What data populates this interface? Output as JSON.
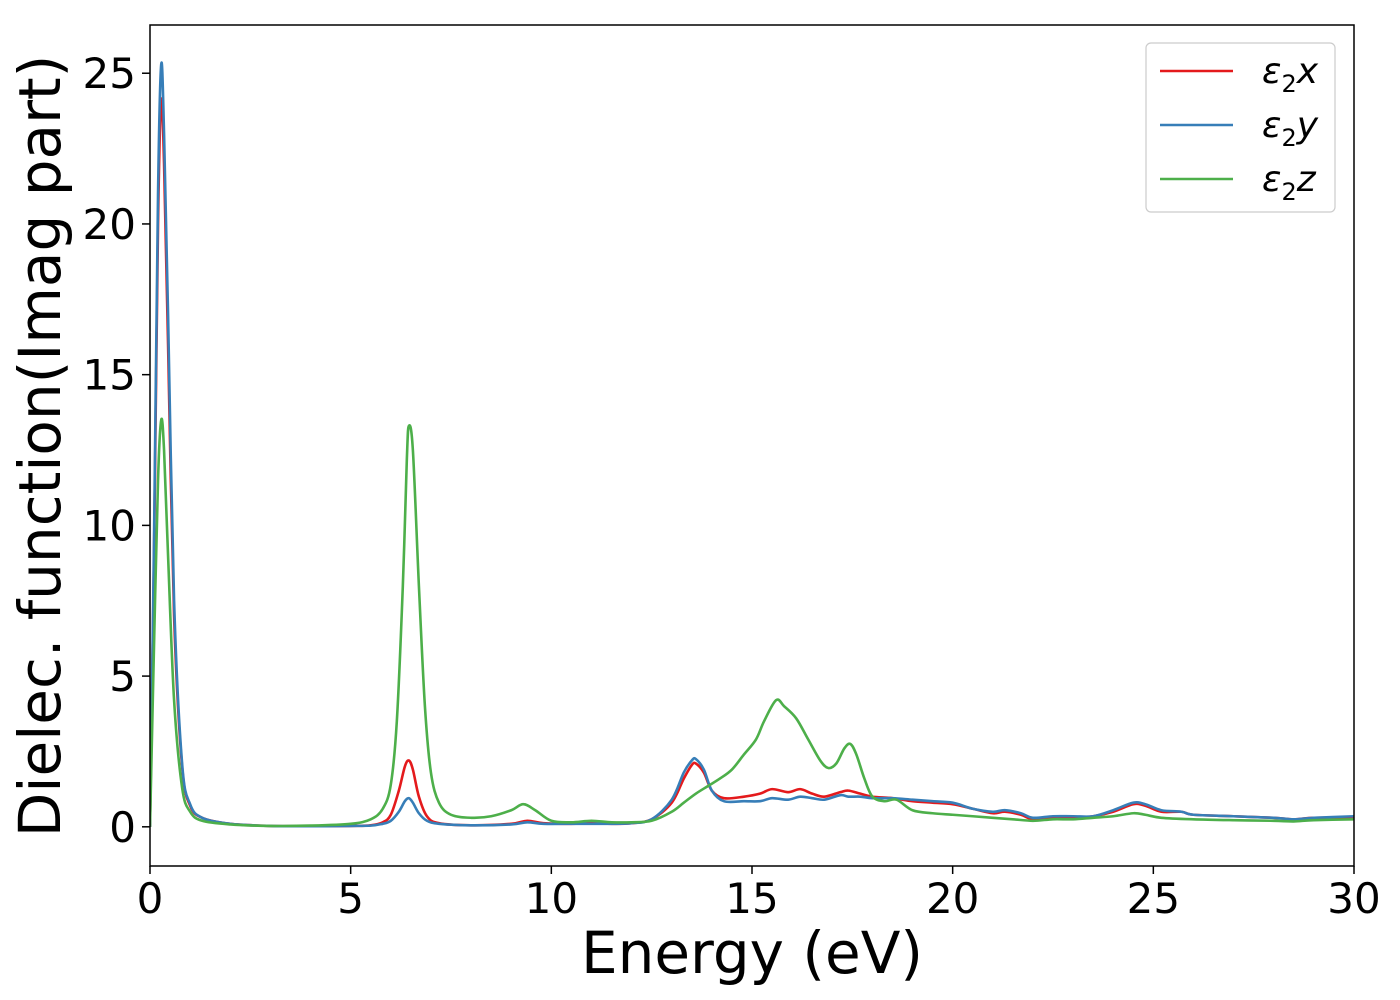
{
  "chart_data": {
    "type": "line",
    "title": "",
    "xlabel": "Energy (eV)",
    "ylabel": "Dielec. function(Imag part)",
    "xlim": [
      0,
      30
    ],
    "ylim": [
      -1.3,
      26.6
    ],
    "xticks": [
      0,
      5,
      10,
      15,
      20,
      25,
      30
    ],
    "yticks": [
      0,
      5,
      10,
      15,
      20,
      25
    ],
    "grid": false,
    "legend_position": "upper right",
    "series": [
      {
        "name": "ε₂x",
        "legend_base": "ε",
        "legend_sub": "2",
        "legend_tail": "x",
        "color": "#e41a1c",
        "points": [
          [
            0,
            0
          ],
          [
            0.1,
            9
          ],
          [
            0.2,
            20
          ],
          [
            0.28,
            24.1
          ],
          [
            0.35,
            22
          ],
          [
            0.45,
            16
          ],
          [
            0.6,
            7
          ],
          [
            0.8,
            2
          ],
          [
            1.0,
            0.7
          ],
          [
            1.3,
            0.3
          ],
          [
            2,
            0.1
          ],
          [
            3,
            0.03
          ],
          [
            4,
            0.02
          ],
          [
            5,
            0.03
          ],
          [
            5.5,
            0.05
          ],
          [
            5.8,
            0.15
          ],
          [
            6.0,
            0.4
          ],
          [
            6.2,
            1.2
          ],
          [
            6.35,
            2.0
          ],
          [
            6.45,
            2.2
          ],
          [
            6.55,
            1.9
          ],
          [
            6.7,
            1.0
          ],
          [
            6.9,
            0.35
          ],
          [
            7.2,
            0.12
          ],
          [
            8,
            0.05
          ],
          [
            9,
            0.1
          ],
          [
            9.4,
            0.2
          ],
          [
            9.8,
            0.12
          ],
          [
            10.5,
            0.1
          ],
          [
            11,
            0.12
          ],
          [
            11.5,
            0.1
          ],
          [
            12,
            0.12
          ],
          [
            12.5,
            0.25
          ],
          [
            13,
            0.8
          ],
          [
            13.3,
            1.6
          ],
          [
            13.5,
            2.05
          ],
          [
            13.6,
            2.1
          ],
          [
            13.8,
            1.8
          ],
          [
            14.0,
            1.2
          ],
          [
            14.3,
            0.95
          ],
          [
            14.8,
            1.0
          ],
          [
            15.2,
            1.1
          ],
          [
            15.5,
            1.25
          ],
          [
            15.9,
            1.15
          ],
          [
            16.2,
            1.25
          ],
          [
            16.5,
            1.1
          ],
          [
            16.8,
            1.0
          ],
          [
            17.2,
            1.15
          ],
          [
            17.4,
            1.2
          ],
          [
            17.7,
            1.1
          ],
          [
            18.0,
            1.0
          ],
          [
            18.5,
            0.95
          ],
          [
            19,
            0.85
          ],
          [
            19.5,
            0.8
          ],
          [
            20,
            0.75
          ],
          [
            20.5,
            0.6
          ],
          [
            21,
            0.45
          ],
          [
            21.3,
            0.5
          ],
          [
            21.7,
            0.4
          ],
          [
            22,
            0.25
          ],
          [
            22.5,
            0.3
          ],
          [
            23,
            0.3
          ],
          [
            23.5,
            0.35
          ],
          [
            24,
            0.5
          ],
          [
            24.5,
            0.75
          ],
          [
            24.8,
            0.7
          ],
          [
            25.2,
            0.5
          ],
          [
            25.7,
            0.5
          ],
          [
            26,
            0.4
          ],
          [
            27,
            0.35
          ],
          [
            28,
            0.3
          ],
          [
            28.5,
            0.25
          ],
          [
            29,
            0.3
          ],
          [
            30,
            0.3
          ]
        ]
      },
      {
        "name": "ε₂y",
        "legend_base": "ε",
        "legend_sub": "2",
        "legend_tail": "y",
        "color": "#377eb8",
        "points": [
          [
            0,
            0
          ],
          [
            0.1,
            9.5
          ],
          [
            0.2,
            21
          ],
          [
            0.28,
            25.3
          ],
          [
            0.35,
            23
          ],
          [
            0.45,
            17
          ],
          [
            0.6,
            7.5
          ],
          [
            0.8,
            2.1
          ],
          [
            1.0,
            0.75
          ],
          [
            1.3,
            0.3
          ],
          [
            2,
            0.1
          ],
          [
            3,
            0.03
          ],
          [
            4,
            0.02
          ],
          [
            5,
            0.03
          ],
          [
            5.5,
            0.04
          ],
          [
            5.8,
            0.1
          ],
          [
            6.0,
            0.2
          ],
          [
            6.2,
            0.5
          ],
          [
            6.35,
            0.85
          ],
          [
            6.45,
            0.95
          ],
          [
            6.55,
            0.8
          ],
          [
            6.7,
            0.45
          ],
          [
            6.9,
            0.2
          ],
          [
            7.2,
            0.1
          ],
          [
            8,
            0.05
          ],
          [
            9,
            0.08
          ],
          [
            9.4,
            0.15
          ],
          [
            9.8,
            0.1
          ],
          [
            10.5,
            0.1
          ],
          [
            11,
            0.1
          ],
          [
            11.5,
            0.1
          ],
          [
            12,
            0.12
          ],
          [
            12.5,
            0.25
          ],
          [
            13,
            0.9
          ],
          [
            13.3,
            1.8
          ],
          [
            13.5,
            2.2
          ],
          [
            13.6,
            2.25
          ],
          [
            13.8,
            1.9
          ],
          [
            14.0,
            1.2
          ],
          [
            14.3,
            0.85
          ],
          [
            14.8,
            0.85
          ],
          [
            15.2,
            0.85
          ],
          [
            15.5,
            0.95
          ],
          [
            15.9,
            0.9
          ],
          [
            16.2,
            1.0
          ],
          [
            16.5,
            0.95
          ],
          [
            16.8,
            0.9
          ],
          [
            17.2,
            1.05
          ],
          [
            17.4,
            1.0
          ],
          [
            17.7,
            1.0
          ],
          [
            18.0,
            0.95
          ],
          [
            18.5,
            0.95
          ],
          [
            19,
            0.9
          ],
          [
            19.5,
            0.85
          ],
          [
            20,
            0.8
          ],
          [
            20.5,
            0.6
          ],
          [
            21,
            0.5
          ],
          [
            21.3,
            0.55
          ],
          [
            21.7,
            0.45
          ],
          [
            22,
            0.3
          ],
          [
            22.5,
            0.35
          ],
          [
            23,
            0.35
          ],
          [
            23.5,
            0.35
          ],
          [
            24,
            0.55
          ],
          [
            24.5,
            0.8
          ],
          [
            24.8,
            0.75
          ],
          [
            25.2,
            0.55
          ],
          [
            25.7,
            0.5
          ],
          [
            26,
            0.4
          ],
          [
            27,
            0.35
          ],
          [
            28,
            0.3
          ],
          [
            28.5,
            0.25
          ],
          [
            29,
            0.3
          ],
          [
            30,
            0.35
          ]
        ]
      },
      {
        "name": "ε₂z",
        "legend_base": "ε",
        "legend_sub": "2",
        "legend_tail": "z",
        "color": "#4daf4a",
        "points": [
          [
            0,
            0
          ],
          [
            0.1,
            6
          ],
          [
            0.2,
            11.5
          ],
          [
            0.28,
            13.5
          ],
          [
            0.35,
            12.5
          ],
          [
            0.45,
            9
          ],
          [
            0.6,
            4.2
          ],
          [
            0.8,
            1.3
          ],
          [
            1.0,
            0.5
          ],
          [
            1.3,
            0.2
          ],
          [
            2,
            0.08
          ],
          [
            3,
            0.03
          ],
          [
            4,
            0.04
          ],
          [
            5,
            0.1
          ],
          [
            5.5,
            0.25
          ],
          [
            5.8,
            0.6
          ],
          [
            6.0,
            1.4
          ],
          [
            6.15,
            3.5
          ],
          [
            6.3,
            8
          ],
          [
            6.4,
            12.2
          ],
          [
            6.45,
            13.3
          ],
          [
            6.55,
            12.5
          ],
          [
            6.7,
            8
          ],
          [
            6.85,
            4
          ],
          [
            7.0,
            1.8
          ],
          [
            7.2,
            0.8
          ],
          [
            7.5,
            0.4
          ],
          [
            8,
            0.3
          ],
          [
            8.5,
            0.35
          ],
          [
            9.0,
            0.55
          ],
          [
            9.3,
            0.75
          ],
          [
            9.6,
            0.55
          ],
          [
            10,
            0.2
          ],
          [
            10.5,
            0.15
          ],
          [
            11,
            0.2
          ],
          [
            11.5,
            0.15
          ],
          [
            12,
            0.15
          ],
          [
            12.5,
            0.2
          ],
          [
            13,
            0.5
          ],
          [
            13.3,
            0.8
          ],
          [
            13.6,
            1.1
          ],
          [
            13.9,
            1.35
          ],
          [
            14.2,
            1.6
          ],
          [
            14.5,
            1.9
          ],
          [
            14.8,
            2.4
          ],
          [
            15.1,
            2.9
          ],
          [
            15.3,
            3.5
          ],
          [
            15.6,
            4.2
          ],
          [
            15.8,
            4.0
          ],
          [
            16.1,
            3.6
          ],
          [
            16.4,
            2.9
          ],
          [
            16.7,
            2.2
          ],
          [
            16.9,
            1.95
          ],
          [
            17.1,
            2.1
          ],
          [
            17.3,
            2.6
          ],
          [
            17.45,
            2.75
          ],
          [
            17.6,
            2.4
          ],
          [
            17.8,
            1.6
          ],
          [
            18.0,
            1.0
          ],
          [
            18.3,
            0.85
          ],
          [
            18.6,
            0.9
          ],
          [
            19,
            0.55
          ],
          [
            19.5,
            0.45
          ],
          [
            20,
            0.4
          ],
          [
            20.5,
            0.35
          ],
          [
            21,
            0.3
          ],
          [
            21.5,
            0.25
          ],
          [
            22,
            0.2
          ],
          [
            22.5,
            0.25
          ],
          [
            23,
            0.25
          ],
          [
            23.5,
            0.3
          ],
          [
            24,
            0.35
          ],
          [
            24.5,
            0.45
          ],
          [
            24.8,
            0.4
          ],
          [
            25.2,
            0.3
          ],
          [
            26,
            0.25
          ],
          [
            27,
            0.22
          ],
          [
            28,
            0.2
          ],
          [
            28.5,
            0.18
          ],
          [
            29,
            0.22
          ],
          [
            30,
            0.25
          ]
        ]
      }
    ]
  }
}
